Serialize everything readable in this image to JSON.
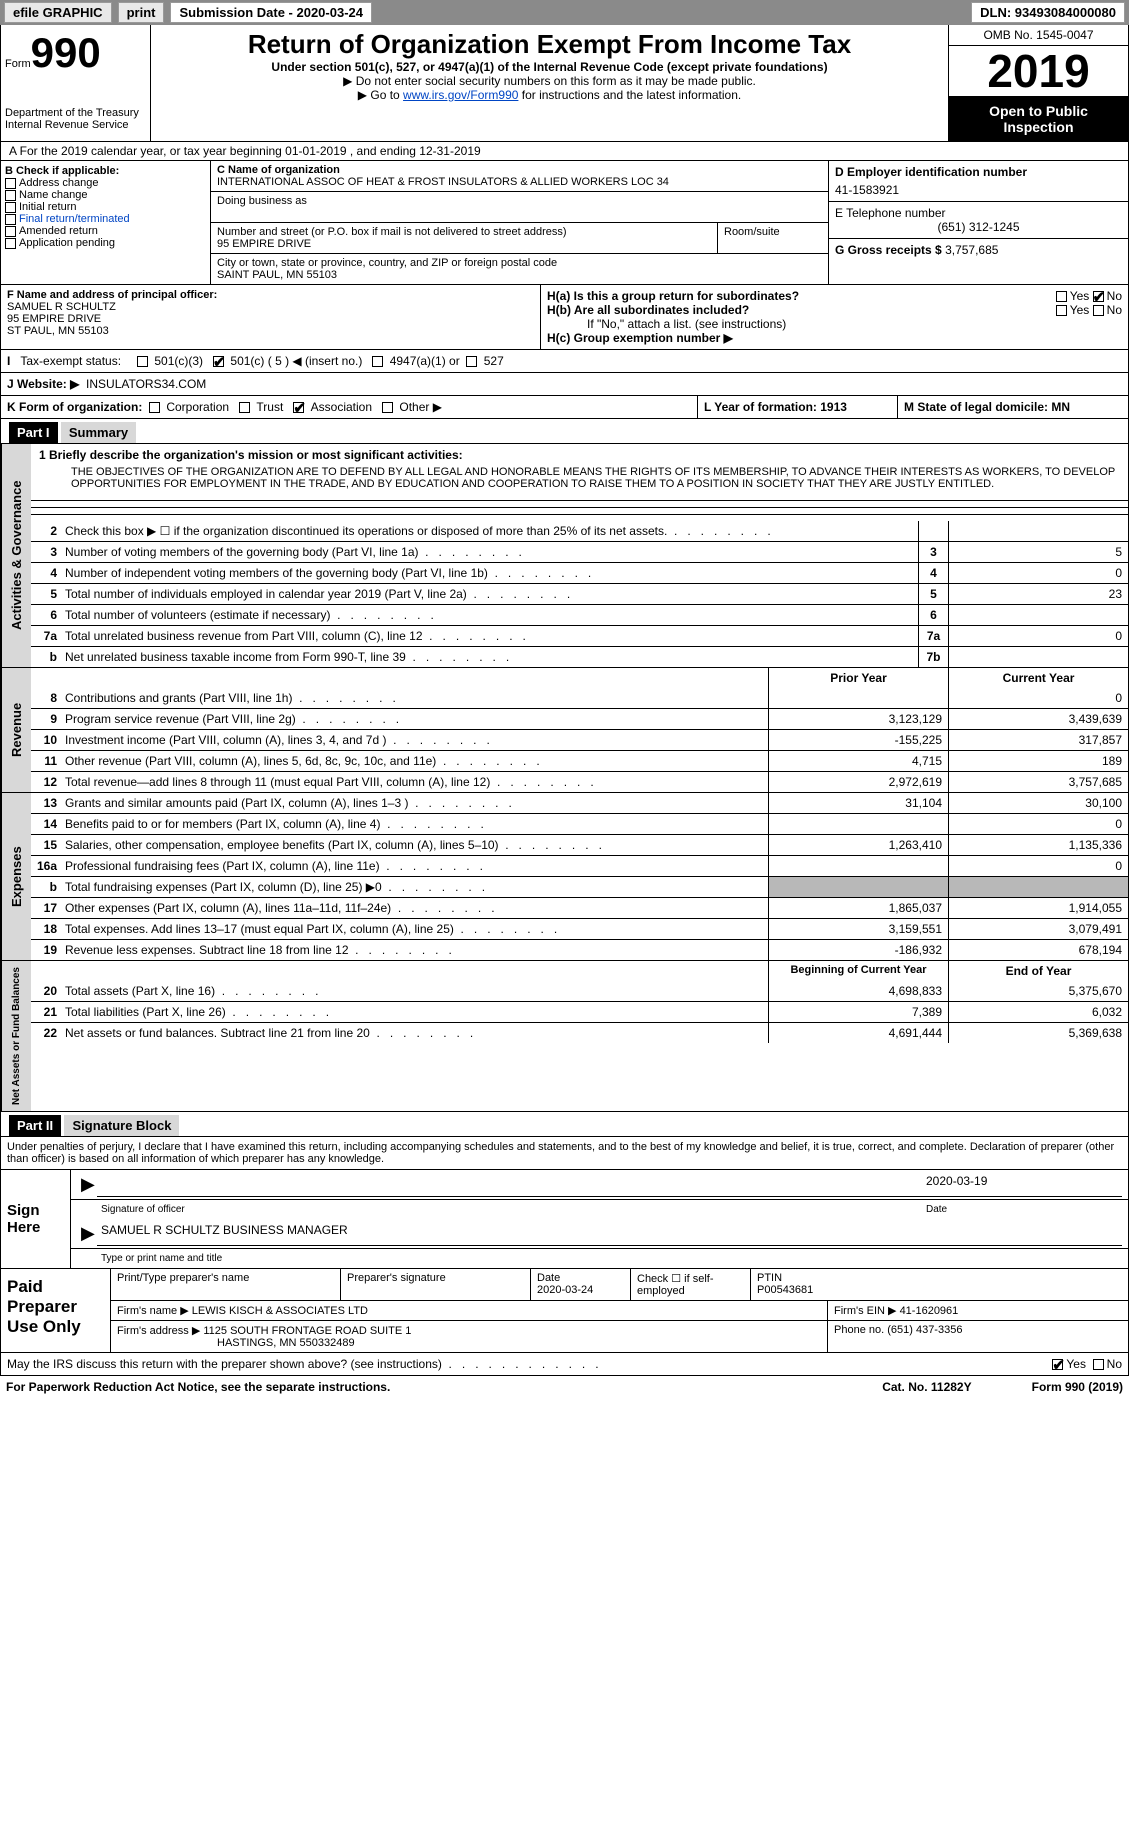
{
  "topbar": {
    "efile": "efile GRAPHIC",
    "print": "print",
    "submission": "Submission Date - 2020-03-24",
    "dln": "DLN: 93493084000080"
  },
  "header": {
    "form": "Form",
    "form_no": "990",
    "dept": "Department of the Treasury\nInternal Revenue Service",
    "title": "Return of Organization Exempt From Income Tax",
    "subtitle": "Under section 501(c), 527, or 4947(a)(1) of the Internal Revenue Code (except private foundations)",
    "note1": "▶ Do not enter social security numbers on this form as it may be made public.",
    "note2_pre": "▶ Go to ",
    "note2_link": "www.irs.gov/Form990",
    "note2_post": " for instructions and the latest information.",
    "omb": "OMB No. 1545-0047",
    "year": "2019",
    "open": "Open to Public Inspection"
  },
  "a_row": "A For the 2019 calendar year, or tax year beginning 01-01-2019   , and ending 12-31-2019",
  "b": {
    "label": "B Check if applicable:",
    "items": [
      "Address change",
      "Name change",
      "Initial return",
      "Final return/terminated",
      "Amended return",
      "Application pending"
    ]
  },
  "c": {
    "name_lbl": "C Name of organization",
    "name": "INTERNATIONAL ASSOC OF HEAT & FROST INSULATORS & ALLIED WORKERS LOC 34",
    "dba_lbl": "Doing business as",
    "addr_lbl": "Number and street (or P.O. box if mail is not delivered to street address)",
    "addr": "95 EMPIRE DRIVE",
    "room_lbl": "Room/suite",
    "city_lbl": "City or town, state or province, country, and ZIP or foreign postal code",
    "city": "SAINT PAUL, MN  55103"
  },
  "d": {
    "lbl": "D Employer identification number",
    "val": "41-1583921"
  },
  "e": {
    "lbl": "E Telephone number",
    "val": "(651) 312-1245"
  },
  "g": {
    "lbl": "G Gross receipts $",
    "val": "3,757,685"
  },
  "f": {
    "lbl": "F Name and address of principal officer:",
    "name": "SAMUEL R SCHULTZ",
    "addr1": "95 EMPIRE DRIVE",
    "addr2": "ST PAUL, MN  55103"
  },
  "h": {
    "a": "H(a)  Is this a group return for subordinates?",
    "b": "H(b)  Are all subordinates included?",
    "b_note": "If \"No,\" attach a list. (see instructions)",
    "c": "H(c)  Group exemption number ▶"
  },
  "i": {
    "lbl": "Tax-exempt status:",
    "opts": [
      "501(c)(3)",
      "501(c) ( 5 ) ◀ (insert no.)",
      "4947(a)(1) or",
      "527"
    ]
  },
  "j": {
    "lbl": "J   Website: ▶",
    "val": "INSULATORS34.COM"
  },
  "k": {
    "lbl": "K Form of organization:",
    "opts": [
      "Corporation",
      "Trust",
      "Association",
      "Other ▶"
    ],
    "l": "L Year of formation: 1913",
    "m": "M State of legal domicile: MN"
  },
  "part1": {
    "hdr": "Part I",
    "title": "Summary"
  },
  "mission": {
    "line1": "1   Briefly describe the organization's mission or most significant activities:",
    "text": "THE OBJECTIVES OF THE ORGANIZATION ARE TO DEFEND BY ALL LEGAL AND HONORABLE MEANS THE RIGHTS OF ITS MEMBERSHIP, TO ADVANCE THEIR INTERESTS AS WORKERS, TO DEVELOP OPPORTUNITIES FOR EMPLOYMENT IN THE TRADE, AND BY EDUCATION AND COOPERATION TO RAISE THEM TO A POSITION IN SOCIETY THAT THEY ARE JUSTLY ENTITLED."
  },
  "lines_gov": [
    {
      "n": "2",
      "t": "Check this box ▶ ☐  if the organization discontinued its operations or disposed of more than 25% of its net assets.",
      "box": "",
      "v": ""
    },
    {
      "n": "3",
      "t": "Number of voting members of the governing body (Part VI, line 1a)",
      "box": "3",
      "v": "5"
    },
    {
      "n": "4",
      "t": "Number of independent voting members of the governing body (Part VI, line 1b)",
      "box": "4",
      "v": "0"
    },
    {
      "n": "5",
      "t": "Total number of individuals employed in calendar year 2019 (Part V, line 2a)",
      "box": "5",
      "v": "23"
    },
    {
      "n": "6",
      "t": "Total number of volunteers (estimate if necessary)",
      "box": "6",
      "v": ""
    },
    {
      "n": "7a",
      "t": "Total unrelated business revenue from Part VIII, column (C), line 12",
      "box": "7a",
      "v": "0"
    },
    {
      "n": "b",
      "t": "Net unrelated business taxable income from Form 990-T, line 39",
      "box": "7b",
      "v": ""
    }
  ],
  "col_hdr": {
    "prior": "Prior Year",
    "current": "Current Year"
  },
  "lines_rev": [
    {
      "n": "8",
      "t": "Contributions and grants (Part VIII, line 1h)",
      "p": "",
      "c": "0"
    },
    {
      "n": "9",
      "t": "Program service revenue (Part VIII, line 2g)",
      "p": "3,123,129",
      "c": "3,439,639"
    },
    {
      "n": "10",
      "t": "Investment income (Part VIII, column (A), lines 3, 4, and 7d )",
      "p": "-155,225",
      "c": "317,857"
    },
    {
      "n": "11",
      "t": "Other revenue (Part VIII, column (A), lines 5, 6d, 8c, 9c, 10c, and 11e)",
      "p": "4,715",
      "c": "189"
    },
    {
      "n": "12",
      "t": "Total revenue—add lines 8 through 11 (must equal Part VIII, column (A), line 12)",
      "p": "2,972,619",
      "c": "3,757,685"
    }
  ],
  "lines_exp": [
    {
      "n": "13",
      "t": "Grants and similar amounts paid (Part IX, column (A), lines 1–3 )",
      "p": "31,104",
      "c": "30,100"
    },
    {
      "n": "14",
      "t": "Benefits paid to or for members (Part IX, column (A), line 4)",
      "p": "",
      "c": "0"
    },
    {
      "n": "15",
      "t": "Salaries, other compensation, employee benefits (Part IX, column (A), lines 5–10)",
      "p": "1,263,410",
      "c": "1,135,336"
    },
    {
      "n": "16a",
      "t": "Professional fundraising fees (Part IX, column (A), line 11e)",
      "p": "",
      "c": "0"
    },
    {
      "n": "b",
      "t": "Total fundraising expenses (Part IX, column (D), line 25) ▶0",
      "p": "shade",
      "c": "shade"
    },
    {
      "n": "17",
      "t": "Other expenses (Part IX, column (A), lines 11a–11d, 11f–24e)",
      "p": "1,865,037",
      "c": "1,914,055"
    },
    {
      "n": "18",
      "t": "Total expenses. Add lines 13–17 (must equal Part IX, column (A), line 25)",
      "p": "3,159,551",
      "c": "3,079,491"
    },
    {
      "n": "19",
      "t": "Revenue less expenses. Subtract line 18 from line 12",
      "p": "-186,932",
      "c": "678,194"
    }
  ],
  "col_hdr2": {
    "prior": "Beginning of Current Year",
    "current": "End of Year"
  },
  "lines_net": [
    {
      "n": "20",
      "t": "Total assets (Part X, line 16)",
      "p": "4,698,833",
      "c": "5,375,670"
    },
    {
      "n": "21",
      "t": "Total liabilities (Part X, line 26)",
      "p": "7,389",
      "c": "6,032"
    },
    {
      "n": "22",
      "t": "Net assets or fund balances. Subtract line 21 from line 20",
      "p": "4,691,444",
      "c": "5,369,638"
    }
  ],
  "vtabs": {
    "gov": "Activities & Governance",
    "rev": "Revenue",
    "exp": "Expenses",
    "net": "Net Assets or Fund Balances"
  },
  "part2": {
    "hdr": "Part II",
    "title": "Signature Block"
  },
  "sig": {
    "decl": "Under penalties of perjury, I declare that I have examined this return, including accompanying schedules and statements, and to the best of my knowledge and belief, it is true, correct, and complete. Declaration of preparer (other than officer) is based on all information of which preparer has any knowledge.",
    "here": "Sign Here",
    "sig_lbl": "Signature of officer",
    "date": "2020-03-19",
    "date_lbl": "Date",
    "name": "SAMUEL R SCHULTZ  BUSINESS MANAGER",
    "name_lbl": "Type or print name and title"
  },
  "paid": {
    "hdr": "Paid Preparer Use Only",
    "cols": [
      "Print/Type preparer's name",
      "Preparer's signature",
      "Date",
      "",
      "PTIN"
    ],
    "date": "2020-03-24",
    "check": "Check ☐ if self-employed",
    "ptin": "P00543681",
    "firm_lbl": "Firm's name    ▶",
    "firm": "LEWIS KISCH & ASSOCIATES LTD",
    "ein_lbl": "Firm's EIN ▶",
    "ein": "41-1620961",
    "addr_lbl": "Firm's address ▶",
    "addr": "1125 SOUTH FRONTAGE ROAD SUITE 1",
    "addr2": "HASTINGS, MN  550332489",
    "phone_lbl": "Phone no.",
    "phone": "(651) 437-3356"
  },
  "footer": {
    "irs": "May the IRS discuss this return with the preparer shown above? (see instructions)",
    "paperwork": "For Paperwork Reduction Act Notice, see the separate instructions.",
    "cat": "Cat. No. 11282Y",
    "form": "Form 990 (2019)"
  },
  "yes": "Yes",
  "no": "No"
}
